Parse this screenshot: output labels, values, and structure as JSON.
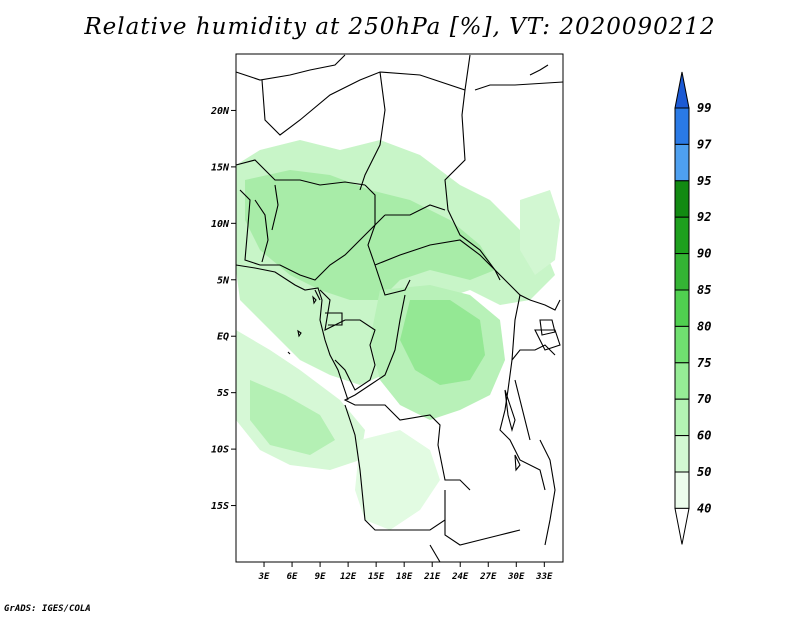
{
  "title": "Relative humidity at 250hPa [%], VT: 2020090212",
  "credit": "GrADS: IGES/COLA",
  "map": {
    "lon_range": [
      0,
      35
    ],
    "lat_range": [
      -20,
      25
    ],
    "lat_ticks": [
      {
        "value": 20,
        "label": "20N"
      },
      {
        "value": 15,
        "label": "15N"
      },
      {
        "value": 10,
        "label": "10N"
      },
      {
        "value": 5,
        "label": "5N"
      },
      {
        "value": 0,
        "label": "EQ"
      },
      {
        "value": -5,
        "label": "5S"
      },
      {
        "value": -10,
        "label": "10S"
      },
      {
        "value": -15,
        "label": "15S"
      }
    ],
    "lon_ticks": [
      {
        "value": 3,
        "label": "3E"
      },
      {
        "value": 6,
        "label": "6E"
      },
      {
        "value": 9,
        "label": "9E"
      },
      {
        "value": 12,
        "label": "12E"
      },
      {
        "value": 15,
        "label": "15E"
      },
      {
        "value": 18,
        "label": "18E"
      },
      {
        "value": 21,
        "label": "21E"
      },
      {
        "value": 24,
        "label": "24E"
      },
      {
        "value": 27,
        "label": "27E"
      },
      {
        "value": 30,
        "label": "30E"
      },
      {
        "value": 33,
        "label": "33E"
      }
    ]
  },
  "colorbar": {
    "levels": [
      "99",
      "97",
      "95",
      "92",
      "90",
      "85",
      "80",
      "75",
      "70",
      "60",
      "50",
      "40"
    ],
    "colors": [
      "#1c5ad4",
      "#2a7ae6",
      "#4ea0f0",
      "#128a12",
      "#1ea01e",
      "#34b434",
      "#50d050",
      "#70e070",
      "#96ec96",
      "#b4f4b4",
      "#d2f8d2",
      "#ecfcec",
      "#ffffff"
    ]
  }
}
